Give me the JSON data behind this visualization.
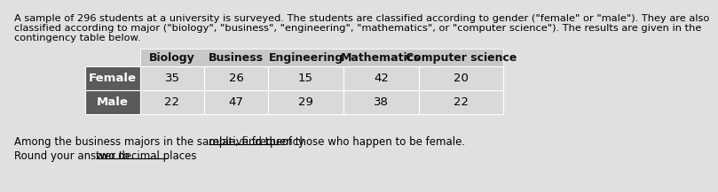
{
  "title_lines": [
    "A sample of 296 students at a university is surveyed. The students are classified according to gender (\"female\" or \"male\"). They are also",
    "classified according to major (\"biology\", \"business\", \"engineering\", \"mathematics\", or \"computer science\"). The results are given in the",
    "contingency table below."
  ],
  "col_headers": [
    "Biology",
    "Business",
    "Engineering",
    "Mathematics",
    "Computer science"
  ],
  "row_headers": [
    "Female",
    "Male"
  ],
  "table_data": [
    [
      35,
      26,
      15,
      42,
      20
    ],
    [
      22,
      47,
      29,
      38,
      22
    ]
  ],
  "header_bg": "#c8c8c8",
  "row_header_bg": "#5a5a5a",
  "row_header_text_color": "#ffffff",
  "cell_bg": "#d9d9d9",
  "cell_text_color": "#000000",
  "body_text_color": "#000000",
  "background_color": "#e0e0e0",
  "title_fontsize": 8.2,
  "table_fontsize": 9.5,
  "question_fontsize": 8.5,
  "q_prefix": "Among the business majors in the sample, find the ",
  "q_underlined": "relative frequency",
  "q_suffix": " of those who happen to be female.",
  "r_prefix": "Round your answer to ",
  "r_underlined": "two decimal places",
  "r_suffix": "."
}
